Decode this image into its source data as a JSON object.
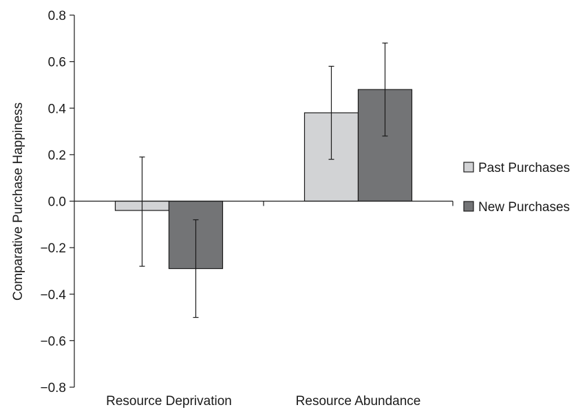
{
  "chart_data": {
    "type": "bar",
    "title": "",
    "xlabel": "",
    "ylabel": "Comparative Purchase Happiness",
    "ylim": [
      -0.8,
      0.8
    ],
    "yticks": [
      0.8,
      0.6,
      0.4,
      0.2,
      0.0,
      -0.2,
      -0.4,
      -0.6,
      -0.8
    ],
    "ytick_labels": [
      "0.8",
      "0.6",
      "0.4",
      "0.2",
      "0.0",
      "−0.2",
      "−0.4",
      "−0.6",
      "−0.8"
    ],
    "categories": [
      "Resource Deprivation",
      "Resource Abundance"
    ],
    "series": [
      {
        "name": "Past Purchases",
        "color": "#d2d3d5",
        "values": [
          -0.04,
          0.38
        ],
        "error_low": [
          -0.28,
          0.18
        ],
        "error_high": [
          0.19,
          0.58
        ]
      },
      {
        "name": "New Purchases",
        "color": "#737476",
        "values": [
          -0.29,
          0.48
        ],
        "error_low": [
          -0.5,
          0.28
        ],
        "error_high": [
          -0.08,
          0.68
        ]
      }
    ],
    "legend_position": "right",
    "grid": false
  }
}
